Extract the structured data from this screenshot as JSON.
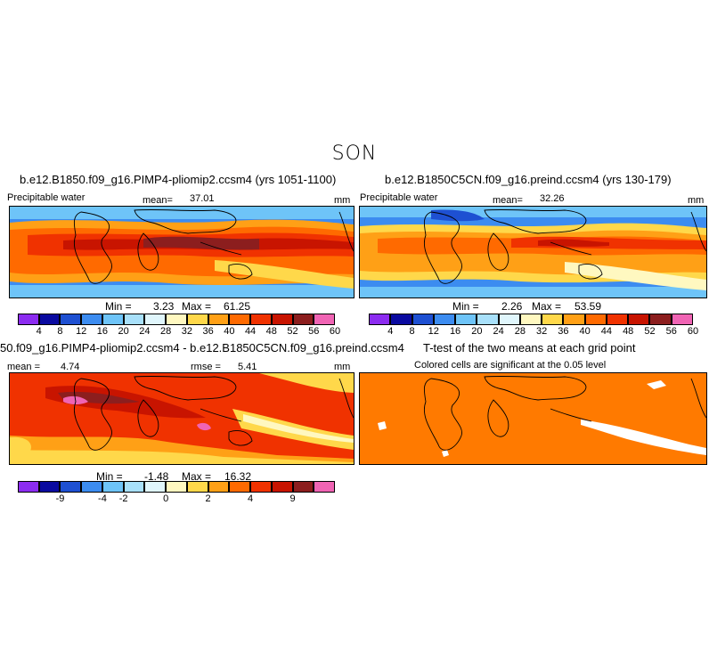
{
  "season": "SON",
  "colors": {
    "palette": [
      "#8c2cf0",
      "#0a0aa0",
      "#1e50d2",
      "#3c8cf0",
      "#6ec4f8",
      "#a8e0fa",
      "#e0f6fc",
      "#fff8c0",
      "#ffd84a",
      "#ffa016",
      "#ff6a00",
      "#f03200",
      "#c81400",
      "#8c1e1e",
      "#f064b4"
    ],
    "significant": "#ff7a00",
    "land_outline": "#000000"
  },
  "panels": {
    "top_left": {
      "title": "b.e12.B1850.f09_g16.PIMP4-pliomip2.ccsm4 (yrs 1051-1100)",
      "variable": "Precipitable water",
      "mean_label": "mean=",
      "mean_value": "37.01",
      "units": "mm",
      "min_label": "Min =",
      "min_value": "3.23",
      "max_label": "Max =",
      "max_value": "61.25"
    },
    "top_right": {
      "title": "b.e12.B1850C5CN.f09_g16.preind.ccsm4 (yrs 130-179)",
      "variable": "Precipitable water",
      "mean_label": "mean=",
      "mean_value": "32.26",
      "units": "mm",
      "min_label": "Min =",
      "min_value": "2.26",
      "max_label": "Max =",
      "max_value": "53.59"
    },
    "bottom_left": {
      "title": "50.f09_g16.PIMP4-pliomip2.ccsm4 - b.e12.B1850C5CN.f09_g16.preind.ccsm4",
      "mean_label": "mean =",
      "mean_value": "4.74",
      "rmse_label": "rmse =",
      "rmse_value": "5.41",
      "units": "mm",
      "min_label": "Min =",
      "min_value": "-1.48",
      "max_label": "Max =",
      "max_value": "16.32"
    },
    "bottom_right": {
      "title": "T-test of the two means at each grid point",
      "subtitle": "Colored cells are significant at the 0.05 level"
    }
  },
  "colorbar_abs": {
    "labels": [
      "4",
      "8",
      "12",
      "16",
      "20",
      "24",
      "28",
      "32",
      "36",
      "40",
      "44",
      "48",
      "52",
      "56",
      "60"
    ]
  },
  "colorbar_diff": {
    "labels": [
      "-9",
      "-4",
      "-2",
      "0",
      "2",
      "4",
      "9"
    ]
  }
}
